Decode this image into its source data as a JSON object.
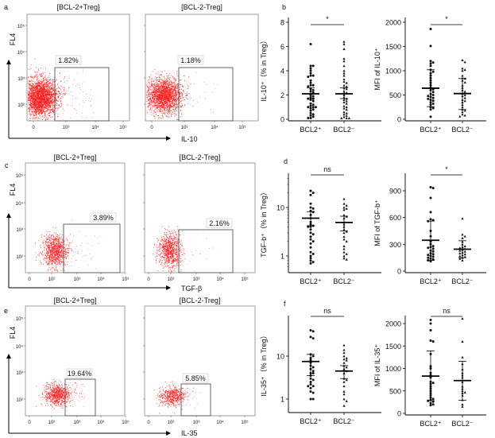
{
  "colors": {
    "events": "#ff1a1a",
    "gate": "#555555",
    "dots": "#111111"
  },
  "panel_letters": [
    "a",
    "b",
    "c",
    "d",
    "e",
    "f"
  ],
  "flow_panels": [
    {
      "letter": "a",
      "y_axis_label": "FL4",
      "x_axis_label": "IL-10",
      "y_ticks": [
        "10⁵",
        "10⁴",
        "10³",
        "10²"
      ],
      "x_ticks": [
        "0",
        "10³",
        "10⁴",
        "10⁵"
      ],
      "plots": [
        {
          "title": "[BCL-2+Treg]",
          "gate_percent": "1.82%"
        },
        {
          "title": "[BCL-2-Treg]",
          "gate_percent": "1.18%"
        }
      ]
    },
    {
      "letter": "c",
      "y_axis_label": "FL4",
      "x_axis_label": "TGF-β",
      "y_ticks": [
        "10⁵",
        "10⁴",
        "10³",
        "10²"
      ],
      "x_ticks": [
        "0",
        "10²",
        "10³",
        "10⁴",
        "10⁵"
      ],
      "plots": [
        {
          "title": "[BCL-2+Treg]",
          "gate_percent": "3.89%"
        },
        {
          "title": "[BCL-2-Treg]",
          "gate_percent": "2.16%"
        }
      ]
    },
    {
      "letter": "e",
      "y_axis_label": "FL4",
      "x_axis_label": "IL-35",
      "y_ticks": [
        "10⁵",
        "10⁴",
        "10³",
        "10²"
      ],
      "x_ticks": [
        "0",
        "10²",
        "10³",
        "10⁴",
        "10⁵"
      ],
      "plots": [
        {
          "title": "[BCL-2+Treg]",
          "gate_percent": "19.64%"
        },
        {
          "title": "[BCL-2-Treg]",
          "gate_percent": "5.85%"
        }
      ]
    }
  ],
  "chart_data": [
    {
      "type": "scatter",
      "panel": "b",
      "ylabel": "IL-10⁺（% in Treg）",
      "categories": [
        "BCL2⁺",
        "BCL2⁻"
      ],
      "ylim": [
        0,
        8
      ],
      "yscale": "linear",
      "y_ticks": [
        "0",
        "2",
        "4",
        "6",
        "8"
      ],
      "significance": "*",
      "series": [
        {
          "marker": "circle",
          "mean": 2.1,
          "err": [
            1.7,
            2.6
          ],
          "values": [
            6.2,
            4.4,
            4.4,
            4.2,
            4.0,
            3.8,
            3.6,
            3.6,
            3.5,
            3.2,
            3.0,
            2.8,
            2.8,
            2.7,
            2.5,
            2.4,
            2.3,
            2.2,
            2.0,
            1.9,
            1.8,
            1.7,
            1.7,
            1.6,
            1.5,
            1.3,
            1.2,
            1.1,
            1.0,
            1.0,
            1.0,
            0.9,
            0.8,
            0.7,
            0.5,
            0.4,
            0.3,
            0.2,
            0.1,
            0.1
          ]
        },
        {
          "marker": "triangle",
          "mean": 2.1,
          "err": [
            1.7,
            2.6
          ],
          "values": [
            6.4,
            6.2,
            5.8,
            5.0,
            4.8,
            4.4,
            4.0,
            3.8,
            3.6,
            3.3,
            3.1,
            3.0,
            2.8,
            2.7,
            2.6,
            2.5,
            2.3,
            2.2,
            2.0,
            1.8,
            1.7,
            1.6,
            1.5,
            1.4,
            1.3,
            1.1,
            1.0,
            0.9,
            0.8,
            0.6,
            0.5,
            0.4,
            0.3,
            0.2,
            0.1,
            0.1,
            0.1
          ]
        }
      ]
    },
    {
      "type": "scatter",
      "panel": "b",
      "ylabel": "MFI of IL-10⁺",
      "categories": [
        "BCL2⁺",
        "BCL2⁻"
      ],
      "ylim": [
        0,
        2000
      ],
      "yscale": "linear",
      "y_ticks": [
        "0",
        "500",
        "1000",
        "1500",
        "2000"
      ],
      "significance": "*",
      "series": [
        {
          "marker": "circle",
          "mean": 640,
          "err": [
            260,
            1020
          ],
          "values": [
            1860,
            1510,
            1200,
            1170,
            1150,
            1100,
            1020,
            980,
            950,
            900,
            850,
            800,
            750,
            700,
            650,
            620,
            600,
            560,
            520,
            500,
            480,
            460,
            440,
            420,
            400,
            380,
            350,
            320,
            300,
            250,
            230,
            200,
            50
          ]
        },
        {
          "marker": "triangle",
          "mean": 530,
          "err": [
            200,
            840
          ],
          "values": [
            1220,
            1180,
            1050,
            1020,
            1000,
            900,
            850,
            840,
            800,
            760,
            700,
            650,
            600,
            570,
            530,
            500,
            480,
            440,
            400,
            380,
            350,
            300,
            250,
            200,
            180,
            150,
            100,
            80,
            60
          ]
        }
      ]
    },
    {
      "type": "scatter",
      "panel": "d",
      "ylabel": "TGF-b⁺（% in Treg）",
      "categories": [
        "BCL2⁺",
        "BCL2⁻"
      ],
      "ylim": [
        0.5,
        50
      ],
      "yscale": "log",
      "y_ticks": [
        "1",
        "10"
      ],
      "significance": "ns",
      "series": [
        {
          "marker": "circle",
          "mean": 6.0,
          "err": [
            4.2,
            8.2
          ],
          "values": [
            22,
            20,
            18,
            12,
            10,
            9.5,
            8.5,
            8,
            7,
            6,
            5,
            4.5,
            4.2,
            4,
            4,
            3.5,
            3,
            2.8,
            2.5,
            2.2,
            2,
            1.8,
            1.5,
            1.2,
            1.1,
            1,
            0.9,
            0.8,
            0.75,
            0.7
          ]
        },
        {
          "marker": "triangle",
          "mean": 4.9,
          "err": [
            3.3,
            6.6
          ],
          "values": [
            15,
            12,
            11,
            10,
            9.5,
            9,
            7,
            6.5,
            6,
            5,
            4.5,
            4,
            3.5,
            3.2,
            3,
            2.5,
            2.2,
            2,
            1.6,
            1.4,
            1.2,
            1.1,
            1,
            0.9,
            0.85
          ]
        }
      ]
    },
    {
      "type": "scatter",
      "panel": "d",
      "ylabel": "MFI of TGF-b⁺",
      "categories": [
        "BCL2⁺",
        "BCL2⁻"
      ],
      "ylim": [
        0,
        1100
      ],
      "yscale": "linear",
      "y_ticks": [
        "0",
        "300",
        "600",
        "900"
      ],
      "significance": "*",
      "series": [
        {
          "marker": "circle",
          "mean": 345,
          "err": [
            120,
            560
          ],
          "values": [
            940,
            930,
            820,
            660,
            580,
            570,
            560,
            450,
            390,
            330,
            300,
            280,
            270,
            260,
            250,
            230,
            220,
            200,
            190,
            180,
            170,
            160,
            150,
            140,
            130,
            120,
            110
          ]
        },
        {
          "marker": "triangle",
          "mean": 245,
          "err": [
            150,
            340
          ],
          "values": [
            590,
            410,
            390,
            370,
            330,
            300,
            280,
            270,
            260,
            250,
            240,
            230,
            220,
            210,
            200,
            190,
            180,
            170,
            160,
            150,
            140,
            120
          ]
        }
      ]
    },
    {
      "type": "scatter",
      "panel": "f",
      "ylabel": "IL-35⁺（% in Treg）",
      "categories": [
        "BCL2⁺",
        "BCL2⁻"
      ],
      "ylim": [
        0.5,
        60
      ],
      "yscale": "log",
      "y_ticks": [
        "1",
        "10"
      ],
      "significance": "ns",
      "series": [
        {
          "marker": "circle",
          "mean": 7.5,
          "err": [
            3.5,
            11
          ],
          "values": [
            40,
            38,
            28,
            26,
            11,
            10,
            9,
            8,
            7,
            6,
            5.5,
            5,
            4.5,
            4,
            4,
            3.5,
            3,
            2.8,
            2.5,
            2.2,
            2,
            2,
            1.8,
            1.5,
            1.4,
            1,
            1
          ]
        },
        {
          "marker": "triangle",
          "mean": 4.5,
          "err": [
            3,
            6
          ],
          "values": [
            18,
            14,
            12,
            10,
            9,
            8.5,
            8,
            7,
            6,
            5.5,
            5,
            4.5,
            4,
            3,
            2.8,
            2.5,
            2,
            1.5,
            1.3,
            1,
            0.9,
            0.7
          ]
        }
      ]
    },
    {
      "type": "scatter",
      "panel": "f",
      "ylabel": "MFI of IL-35⁺",
      "categories": [
        "BCL2⁺",
        "BCL2⁻"
      ],
      "ylim": [
        0,
        2200
      ],
      "yscale": "linear",
      "y_ticks": [
        "0",
        "500",
        "1000",
        "1500",
        "2000"
      ],
      "significance": "ns",
      "series": [
        {
          "marker": "circle",
          "mean": 830,
          "err": [
            280,
            1390
          ],
          "values": [
            2080,
            2000,
            1850,
            1620,
            1600,
            1320,
            1050,
            1000,
            900,
            850,
            800,
            700,
            680,
            650,
            600,
            550,
            500,
            450,
            400,
            350,
            320,
            300,
            280,
            260,
            230,
            200,
            180
          ]
        },
        {
          "marker": "triangle",
          "mean": 730,
          "err": [
            290,
            1160
          ],
          "values": [
            2110,
            1600,
            1250,
            1100,
            980,
            900,
            850,
            800,
            700,
            600,
            550,
            500,
            470,
            450,
            400,
            300,
            200,
            150
          ]
        }
      ]
    }
  ]
}
